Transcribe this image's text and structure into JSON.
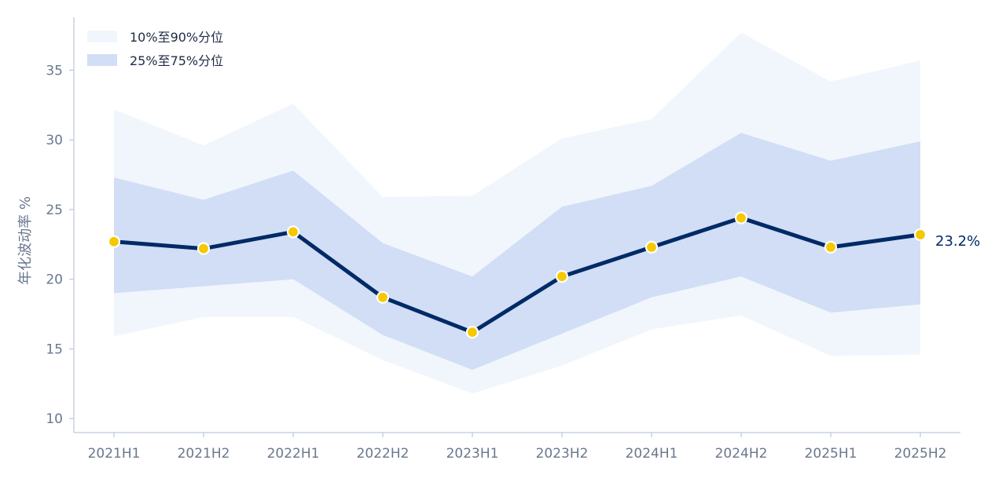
{
  "chart_data": {
    "type": "line",
    "categories": [
      "2021H1",
      "2021H2",
      "2022H1",
      "2022H2",
      "2023H1",
      "2023H2",
      "2024H1",
      "2024H2",
      "2025H1",
      "2025H2"
    ],
    "median": [
      22.7,
      22.2,
      23.4,
      18.7,
      16.2,
      20.2,
      22.3,
      24.4,
      22.3,
      23.2
    ],
    "p25": [
      19.0,
      19.5,
      20.0,
      16.0,
      13.5,
      16.1,
      18.7,
      20.2,
      17.6,
      18.2
    ],
    "p75": [
      27.3,
      25.7,
      27.8,
      22.6,
      20.2,
      25.2,
      26.7,
      30.5,
      28.5,
      29.9
    ],
    "p10": [
      15.9,
      17.3,
      17.3,
      14.2,
      11.8,
      13.8,
      16.4,
      17.4,
      14.5,
      14.6
    ],
    "p90": [
      32.2,
      29.6,
      32.6,
      25.9,
      26.0,
      30.1,
      31.5,
      37.7,
      34.2,
      35.7
    ],
    "legend": [
      {
        "label": "10%至90%分位",
        "color": "#f1f6fd"
      },
      {
        "label": "25%至75%分位",
        "color": "#d1def5"
      }
    ],
    "ylabel": "年化波动率 %",
    "yticks": [
      10,
      15,
      20,
      25,
      30,
      35
    ],
    "ylim": [
      9,
      38.8
    ],
    "end_label": "23.2%",
    "colors": {
      "median_line": "#002a66",
      "marker_fill": "#f5c800",
      "marker_stroke": "#ffffff",
      "axis": "#bfc9dc",
      "band_outer": "#f1f6fd",
      "band_inner": "#d1def5"
    },
    "grid": false,
    "legend_position": "top-left"
  }
}
